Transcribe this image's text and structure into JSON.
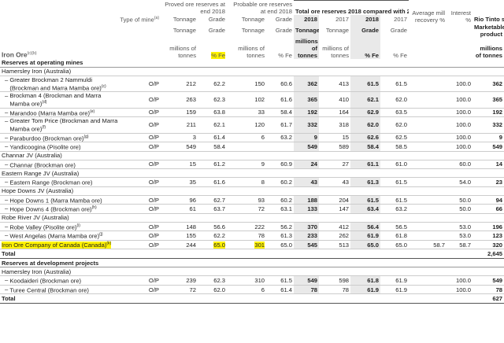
{
  "header": {
    "type_of_mine": "Type of mine",
    "type_sup": "(a)",
    "proved": "Proved ore reserves at end 2018",
    "probable": "Probable ore reserves at end 2018",
    "total": "Total ore reserves 2018 compared with 2017",
    "recovery": "Average mill recovery %",
    "interest": "Interest %",
    "share": "Rio Tinto share",
    "tonnage": "Tonnage",
    "grade": "Grade",
    "y2018": "2018",
    "y2017": "2017",
    "marketable": "Marketable product",
    "iron_ore": "Iron Ore",
    "iron_ore_sup": "(c)(b)",
    "mt": "millions of tonnes",
    "fe": "% Fe"
  },
  "sections": [
    {
      "title": "Reserves at operating mines",
      "groups": [
        {
          "name": "Hamersley Iron (Australia)",
          "rows": [
            {
              "name": "Greater Brockman 2 Nammuldi (Brockman and Marra Mamba ore)",
              "sup": "(c)",
              "type": "O/P",
              "pt": "212",
              "pg": "62.2",
              "bt": "150",
              "bg": "60.6",
              "t18": "362",
              "t17": "413",
              "g18": "61.5",
              "g17": "61.5",
              "rec": "",
              "int": "100.0",
              "share": "362",
              "lines": 2
            },
            {
              "name": "Brockman 4 (Brockman and Marra Mamba ore)",
              "sup": "(d)",
              "type": "O/P",
              "pt": "263",
              "pg": "62.3",
              "bt": "102",
              "bg": "61.6",
              "t18": "365",
              "t17": "410",
              "g18": "62.1",
              "g17": "62.0",
              "rec": "",
              "int": "100.0",
              "share": "365",
              "lines": 2
            },
            {
              "name": "Marandoo (Marra Mamba ore)",
              "sup": "(e)",
              "type": "O/P",
              "pt": "159",
              "pg": "63.8",
              "bt": "33",
              "bg": "58.4",
              "t18": "192",
              "t17": "164",
              "g18": "62.9",
              "g17": "63.5",
              "rec": "",
              "int": "100.0",
              "share": "192",
              "lines": 1
            },
            {
              "name": "Greater Tom Price (Brockman and Marra Mamba ore)",
              "sup": "(f)",
              "type": "O/P",
              "pt": "211",
              "pg": "62.1",
              "bt": "120",
              "bg": "61.7",
              "t18": "332",
              "t17": "318",
              "g18": "62.0",
              "g17": "62.0",
              "rec": "",
              "int": "100.0",
              "share": "332",
              "lines": 2
            },
            {
              "name": "Paraburdoo (Brockman ore)",
              "sup": "(g)",
              "type": "O/P",
              "pt": "3",
              "pg": "61.4",
              "bt": "6",
              "bg": "63.2",
              "t18": "9",
              "t17": "15",
              "g18": "62.6",
              "g17": "62.5",
              "rec": "",
              "int": "100.0",
              "share": "9",
              "lines": 1
            },
            {
              "name": "Yandicoogina (Pisolite ore)",
              "sup": "",
              "type": "O/P",
              "pt": "549",
              "pg": "58.4",
              "bt": "",
              "bg": "",
              "t18": "549",
              "t17": "589",
              "g18": "58.4",
              "g17": "58.5",
              "rec": "",
              "int": "100.0",
              "share": "549",
              "lines": 1
            }
          ]
        },
        {
          "name": "Channar JV (Australia)",
          "rows": [
            {
              "name": "Channar (Brockman ore)",
              "sup": "",
              "type": "O/P",
              "pt": "15",
              "pg": "61.2",
              "bt": "9",
              "bg": "60.9",
              "t18": "24",
              "t17": "27",
              "g18": "61.1",
              "g17": "61.0",
              "rec": "",
              "int": "60.0",
              "share": "14",
              "lines": 1
            }
          ]
        },
        {
          "name": "Eastern Range JV (Australia)",
          "rows": [
            {
              "name": "Eastern Range (Brockman ore)",
              "sup": "",
              "type": "O/P",
              "pt": "35",
              "pg": "61.6",
              "bt": "8",
              "bg": "60.2",
              "t18": "43",
              "t17": "43",
              "g18": "61.3",
              "g17": "61.5",
              "rec": "",
              "int": "54.0",
              "share": "23",
              "lines": 1
            }
          ]
        },
        {
          "name": "Hope Downs JV (Australia)",
          "rows": [
            {
              "name": "Hope Downs 1 (Marra Mamba ore)",
              "sup": "",
              "type": "O/P",
              "pt": "96",
              "pg": "62.7",
              "bt": "93",
              "bg": "60.2",
              "t18": "188",
              "t17": "204",
              "g18": "61.5",
              "g17": "61.5",
              "rec": "",
              "int": "50.0",
              "share": "94",
              "lines": 1
            },
            {
              "name": "Hope Downs 4 (Brockman ore)",
              "sup": "(h)",
              "type": "O/P",
              "pt": "61",
              "pg": "63.7",
              "bt": "72",
              "bg": "63.1",
              "t18": "133",
              "t17": "147",
              "g18": "63.4",
              "g17": "63.2",
              "rec": "",
              "int": "50.0",
              "share": "66",
              "lines": 1
            }
          ]
        },
        {
          "name": "Robe River JV (Australia)",
          "rows": [
            {
              "name": "Robe Valley (Pisolite ore)",
              "sup": "(i)",
              "type": "O/P",
              "pt": "148",
              "pg": "56.6",
              "bt": "222",
              "bg": "56.2",
              "t18": "370",
              "t17": "412",
              "g18": "56.4",
              "g17": "56.5",
              "rec": "",
              "int": "53.0",
              "share": "196",
              "lines": 1
            },
            {
              "name": "West Angelas (Marra Mamba ore)",
              "sup": "(j)",
              "type": "O/P",
              "pt": "155",
              "pg": "62.2",
              "bt": "78",
              "bg": "61.3",
              "t18": "233",
              "t17": "262",
              "g18": "61.9",
              "g17": "61.8",
              "rec": "",
              "int": "53.0",
              "share": "123",
              "lines": 1
            }
          ]
        }
      ],
      "extra": {
        "name": "Iron Ore Company of Canada (Canada)",
        "sup": "(k)",
        "type": "O/P",
        "pt": "244",
        "pg": "65.0",
        "bt": "301",
        "bg": "65.0",
        "t18": "545",
        "t17": "513",
        "g18": "65.0",
        "g17": "65.0",
        "rec": "58.7",
        "int": "58.7",
        "share": "320"
      },
      "total": {
        "label": "Total",
        "share": "2,645"
      }
    },
    {
      "title": "Reserves at development projects",
      "groups": [
        {
          "name": "Hamersley Iron (Australia)",
          "rows": [
            {
              "name": "Koodaideri (Brockman ore)",
              "sup": "",
              "type": "O/P",
              "pt": "239",
              "pg": "62.3",
              "bt": "310",
              "bg": "61.5",
              "t18": "549",
              "t17": "598",
              "g18": "61.8",
              "g17": "61.9",
              "rec": "",
              "int": "100.0",
              "share": "549",
              "lines": 1
            },
            {
              "name": "Turee Central (Brockman ore)",
              "sup": "",
              "type": "O/P",
              "pt": "72",
              "pg": "62.0",
              "bt": "6",
              "bg": "61.4",
              "t18": "78",
              "t17": "78",
              "g18": "61.9",
              "g17": "61.9",
              "rec": "",
              "int": "100.0",
              "share": "78",
              "lines": 1
            }
          ]
        }
      ],
      "total": {
        "label": "Total",
        "share": "627"
      }
    }
  ],
  "colors": {
    "highlight": "#fff200",
    "shade": "#e9e9e9"
  }
}
